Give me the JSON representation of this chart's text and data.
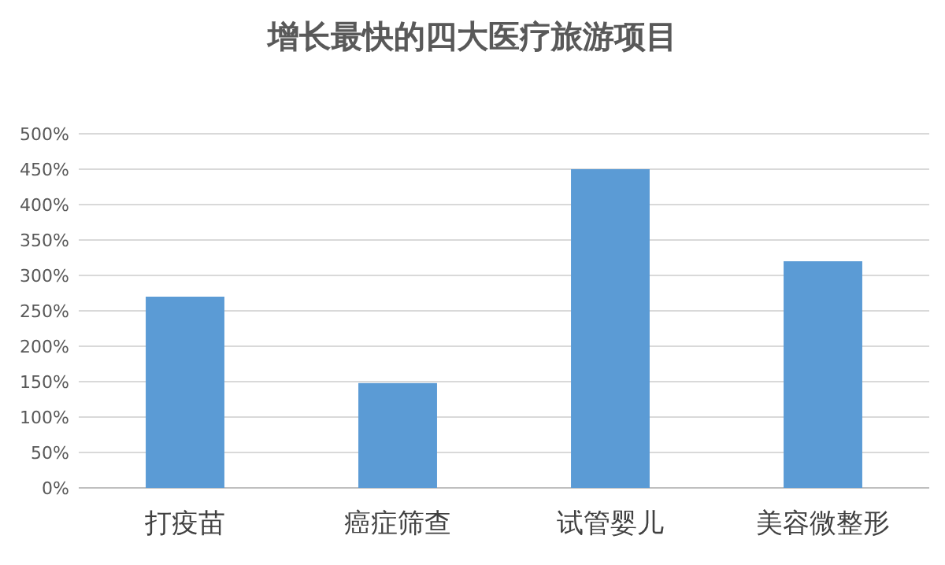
{
  "chart_data": {
    "type": "bar",
    "title": "增长最快的四大医疗旅游项目",
    "categories": [
      "打疫苗",
      "癌症筛查",
      "试管婴儿",
      "美容微整形"
    ],
    "values": [
      270,
      148,
      450,
      320
    ],
    "color": "#5b9bd5",
    "ylim": [
      0,
      500
    ],
    "yticks": [
      {
        "value": 0,
        "label": "0%"
      },
      {
        "value": 50,
        "label": "50%"
      },
      {
        "value": 100,
        "label": "100%"
      },
      {
        "value": 150,
        "label": "150%"
      },
      {
        "value": 200,
        "label": "200%"
      },
      {
        "value": 250,
        "label": "250%"
      },
      {
        "value": 300,
        "label": "300%"
      },
      {
        "value": 350,
        "label": "350%"
      },
      {
        "value": 400,
        "label": "400%"
      },
      {
        "value": 450,
        "label": "450%"
      },
      {
        "value": 500,
        "label": "500%"
      }
    ],
    "grid": "y"
  }
}
